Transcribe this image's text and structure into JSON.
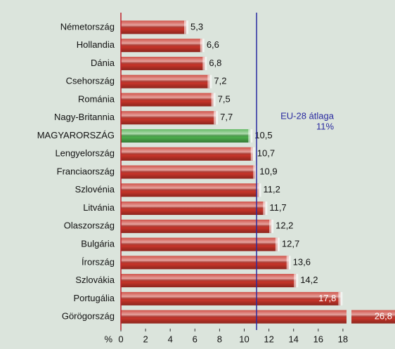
{
  "chart_data": {
    "type": "barh",
    "categories": [
      "Németország",
      "Hollandia",
      "Dánia",
      "Csehország",
      "Románia",
      "Nagy-Britannia",
      "MAGYARORSZÁG",
      "Lengyelország",
      "Franciaország",
      "Szlovénia",
      "Litvánia",
      "Olaszország",
      "Bulgária",
      "Írország",
      "Szlovákia",
      "Portugália",
      "Görögország"
    ],
    "values": [
      5.3,
      6.6,
      6.8,
      7.2,
      7.5,
      7.7,
      10.5,
      10.7,
      10.9,
      11.2,
      11.7,
      12.2,
      12.7,
      13.6,
      14.2,
      17.8,
      26.8
    ],
    "value_labels": [
      "5,3",
      "6,6",
      "6,8",
      "7,2",
      "7,5",
      "7,7",
      "10,5",
      "10,7",
      "10,9",
      "11,2",
      "11,7",
      "12,2",
      "12,7",
      "13,6",
      "14,2",
      "17,8",
      "26,8"
    ],
    "colors": [
      "#c8352a",
      "#c8352a",
      "#c8352a",
      "#c8352a",
      "#c8352a",
      "#c8352a",
      "#4cae4c",
      "#c8352a",
      "#c8352a",
      "#c8352a",
      "#c8352a",
      "#c8352a",
      "#c8352a",
      "#c8352a",
      "#c8352a",
      "#c8352a",
      "#c8352a"
    ],
    "xlim": [
      0,
      20
    ],
    "xticks": [
      0,
      2,
      4,
      6,
      8,
      10,
      12,
      14,
      16,
      18
    ],
    "x_label": "%",
    "reference_line": {
      "value": 11,
      "label": "EU-28 átlaga",
      "value_label": "11%",
      "color": "#2a2aa0"
    },
    "axis_color": "#c0202a"
  }
}
